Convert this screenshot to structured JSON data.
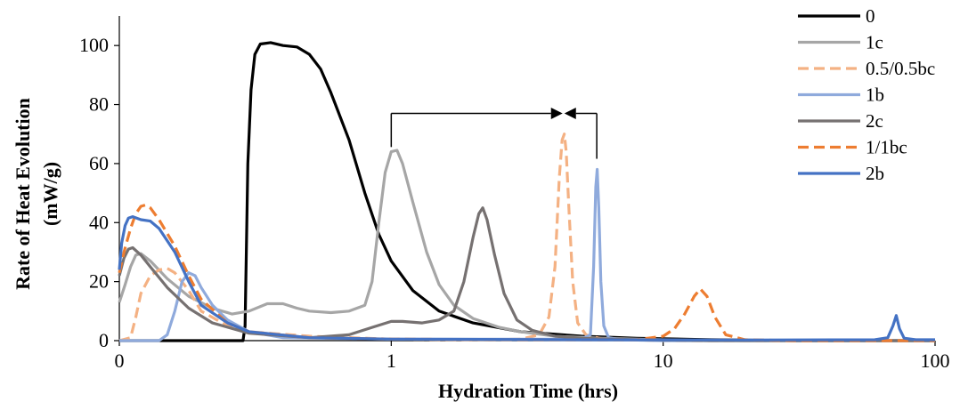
{
  "chart_data": {
    "type": "line",
    "title": "",
    "xlabel": "Hydration Time (hrs)",
    "ylabel": "Rate of Heat Evolution (mW/g)",
    "ylabel_lines": [
      "Rate of Heat Evolution",
      "(mW/g)"
    ],
    "x_scale": "log",
    "xlim": [
      0.1,
      100
    ],
    "ylim": [
      0,
      110
    ],
    "x_tick_labels": [
      {
        "value": 0.1,
        "label": "0"
      },
      {
        "value": 1,
        "label": "1"
      },
      {
        "value": 10,
        "label": "10"
      },
      {
        "value": 100,
        "label": "100"
      }
    ],
    "y_ticks": [
      0,
      20,
      40,
      60,
      80,
      100
    ],
    "grid": false,
    "legend_position": "top-right",
    "annotation": {
      "type": "bracket-arrows",
      "from_x": 1.0,
      "from_y": 65,
      "mid_x": 4.3,
      "to_x": 5.7,
      "to_y": 58,
      "bar_y": 77
    },
    "series": [
      {
        "name": "0",
        "color": "#000000",
        "dash": "solid",
        "points": [
          [
            0.1,
            0
          ],
          [
            0.2,
            0
          ],
          [
            0.285,
            0
          ],
          [
            0.29,
            5
          ],
          [
            0.297,
            60
          ],
          [
            0.305,
            85
          ],
          [
            0.315,
            97
          ],
          [
            0.33,
            100.5
          ],
          [
            0.36,
            101
          ],
          [
            0.4,
            100
          ],
          [
            0.45,
            99.5
          ],
          [
            0.5,
            97
          ],
          [
            0.55,
            92
          ],
          [
            0.6,
            84
          ],
          [
            0.7,
            68
          ],
          [
            0.8,
            50
          ],
          [
            0.9,
            36
          ],
          [
            1.0,
            27
          ],
          [
            1.2,
            17
          ],
          [
            1.5,
            10
          ],
          [
            2.0,
            6
          ],
          [
            3.0,
            3
          ],
          [
            5.0,
            1.5
          ],
          [
            8.0,
            0.8
          ],
          [
            15,
            0.3
          ],
          [
            30,
            0
          ],
          [
            100,
            0
          ]
        ]
      },
      {
        "name": "1c",
        "color": "#a6a6a6",
        "dash": "solid",
        "points": [
          [
            0.1,
            13
          ],
          [
            0.105,
            19
          ],
          [
            0.11,
            25
          ],
          [
            0.115,
            29
          ],
          [
            0.12,
            29.5
          ],
          [
            0.13,
            27
          ],
          [
            0.15,
            21
          ],
          [
            0.18,
            15
          ],
          [
            0.22,
            11
          ],
          [
            0.26,
            9
          ],
          [
            0.3,
            10
          ],
          [
            0.35,
            12.5
          ],
          [
            0.4,
            12.5
          ],
          [
            0.45,
            11
          ],
          [
            0.5,
            10
          ],
          [
            0.6,
            9.5
          ],
          [
            0.7,
            10
          ],
          [
            0.8,
            12
          ],
          [
            0.85,
            20
          ],
          [
            0.9,
            40
          ],
          [
            0.95,
            57
          ],
          [
            1.0,
            64
          ],
          [
            1.05,
            64.5
          ],
          [
            1.1,
            60
          ],
          [
            1.2,
            47
          ],
          [
            1.35,
            30
          ],
          [
            1.5,
            19
          ],
          [
            1.7,
            12
          ],
          [
            2.0,
            7.5
          ],
          [
            2.5,
            4.5
          ],
          [
            3.0,
            3
          ],
          [
            4.0,
            1.5
          ],
          [
            6.0,
            0.8
          ],
          [
            10,
            0.3
          ],
          [
            20,
            0
          ],
          [
            100,
            0
          ]
        ]
      },
      {
        "name": "0.5/0.5bc",
        "color": "#f4b183",
        "dash": "dashed",
        "points": [
          [
            0.1,
            0
          ],
          [
            0.11,
            1
          ],
          [
            0.115,
            8
          ],
          [
            0.12,
            16
          ],
          [
            0.13,
            22
          ],
          [
            0.14,
            24
          ],
          [
            0.15,
            24.5
          ],
          [
            0.16,
            23
          ],
          [
            0.18,
            17
          ],
          [
            0.2,
            10
          ],
          [
            0.25,
            5
          ],
          [
            0.3,
            3
          ],
          [
            0.5,
            1.5
          ],
          [
            1.0,
            0.5
          ],
          [
            2.0,
            0.3
          ],
          [
            3.0,
            0.5
          ],
          [
            3.5,
            2
          ],
          [
            3.8,
            8
          ],
          [
            4.0,
            25
          ],
          [
            4.15,
            55
          ],
          [
            4.25,
            68
          ],
          [
            4.33,
            70
          ],
          [
            4.4,
            64
          ],
          [
            4.5,
            45
          ],
          [
            4.65,
            20
          ],
          [
            4.85,
            6
          ],
          [
            5.2,
            2
          ],
          [
            6.0,
            0.5
          ],
          [
            10,
            0
          ],
          [
            100,
            0
          ]
        ]
      },
      {
        "name": "1b",
        "color": "#8faadc",
        "dash": "solid",
        "points": [
          [
            0.1,
            0
          ],
          [
            0.14,
            0
          ],
          [
            0.15,
            2
          ],
          [
            0.16,
            10
          ],
          [
            0.17,
            20
          ],
          [
            0.18,
            23
          ],
          [
            0.19,
            22
          ],
          [
            0.2,
            18
          ],
          [
            0.22,
            12
          ],
          [
            0.25,
            7
          ],
          [
            0.3,
            3
          ],
          [
            0.4,
            1
          ],
          [
            1.0,
            0.5
          ],
          [
            3.0,
            0.5
          ],
          [
            5.0,
            0.5
          ],
          [
            5.4,
            2
          ],
          [
            5.55,
            25
          ],
          [
            5.65,
            52
          ],
          [
            5.72,
            58
          ],
          [
            5.8,
            45
          ],
          [
            5.9,
            20
          ],
          [
            6.05,
            5
          ],
          [
            6.3,
            1
          ],
          [
            7.0,
            0.3
          ],
          [
            10,
            0
          ],
          [
            100,
            0
          ]
        ]
      },
      {
        "name": "2c",
        "color": "#767171",
        "dash": "solid",
        "points": [
          [
            0.1,
            22
          ],
          [
            0.104,
            28
          ],
          [
            0.108,
            31
          ],
          [
            0.112,
            31.5
          ],
          [
            0.12,
            29
          ],
          [
            0.13,
            25
          ],
          [
            0.15,
            18
          ],
          [
            0.18,
            11
          ],
          [
            0.22,
            6
          ],
          [
            0.3,
            2.5
          ],
          [
            0.5,
            1
          ],
          [
            0.7,
            2
          ],
          [
            0.85,
            4.5
          ],
          [
            1.0,
            6.5
          ],
          [
            1.1,
            6.5
          ],
          [
            1.3,
            6
          ],
          [
            1.5,
            7
          ],
          [
            1.7,
            10
          ],
          [
            1.85,
            20
          ],
          [
            2.0,
            35
          ],
          [
            2.1,
            43
          ],
          [
            2.17,
            45
          ],
          [
            2.25,
            41
          ],
          [
            2.4,
            29
          ],
          [
            2.6,
            16
          ],
          [
            2.9,
            7
          ],
          [
            3.3,
            3.5
          ],
          [
            4.0,
            1.5
          ],
          [
            5.0,
            0.8
          ],
          [
            8.0,
            0.3
          ],
          [
            15,
            0
          ],
          [
            100,
            0
          ]
        ]
      },
      {
        "name": "1/1bc",
        "color": "#ed7d31",
        "dash": "dashed",
        "points": [
          [
            0.1,
            23
          ],
          [
            0.104,
            30
          ],
          [
            0.11,
            38
          ],
          [
            0.115,
            43
          ],
          [
            0.12,
            45.5
          ],
          [
            0.125,
            46
          ],
          [
            0.13,
            45
          ],
          [
            0.14,
            41
          ],
          [
            0.16,
            32
          ],
          [
            0.18,
            22
          ],
          [
            0.2,
            14
          ],
          [
            0.25,
            6
          ],
          [
            0.3,
            3
          ],
          [
            0.5,
            1
          ],
          [
            1.0,
            0.5
          ],
          [
            3.0,
            0.3
          ],
          [
            8.0,
            0.3
          ],
          [
            10,
            1.5
          ],
          [
            11,
            4
          ],
          [
            12,
            9
          ],
          [
            13,
            15
          ],
          [
            13.7,
            17.5
          ],
          [
            14.5,
            15
          ],
          [
            15.5,
            8
          ],
          [
            17,
            2
          ],
          [
            20,
            0.3
          ],
          [
            30,
            0
          ],
          [
            100,
            0
          ]
        ]
      },
      {
        "name": "2b",
        "color": "#4472c4",
        "dash": "solid",
        "points": [
          [
            0.1,
            24
          ],
          [
            0.102,
            33
          ],
          [
            0.105,
            39
          ],
          [
            0.108,
            41.5
          ],
          [
            0.112,
            42
          ],
          [
            0.12,
            41
          ],
          [
            0.13,
            40.5
          ],
          [
            0.14,
            38
          ],
          [
            0.16,
            30
          ],
          [
            0.18,
            20
          ],
          [
            0.2,
            12
          ],
          [
            0.25,
            6
          ],
          [
            0.3,
            3
          ],
          [
            0.5,
            1
          ],
          [
            1.0,
            0.5
          ],
          [
            5.0,
            0.3
          ],
          [
            20,
            0.2
          ],
          [
            60,
            0.3
          ],
          [
            67,
            1
          ],
          [
            70,
            5
          ],
          [
            72,
            8.5
          ],
          [
            74,
            4
          ],
          [
            77,
            0.8
          ],
          [
            85,
            0.3
          ],
          [
            100,
            0.3
          ]
        ]
      }
    ]
  }
}
